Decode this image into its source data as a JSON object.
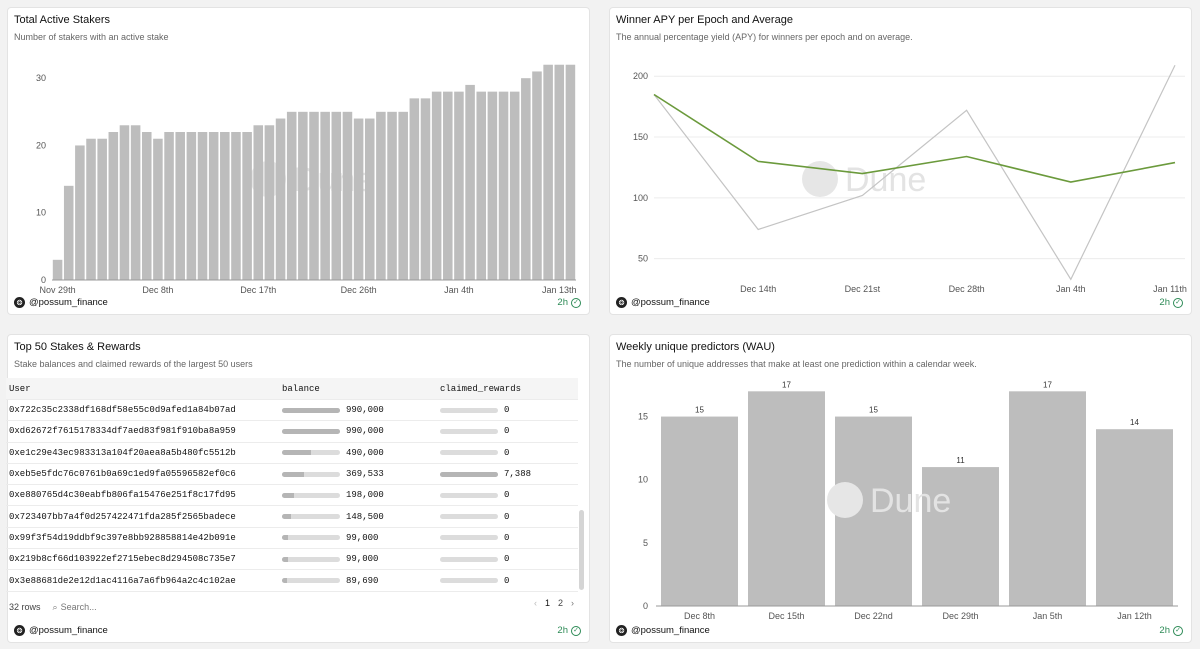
{
  "panels": {
    "stakers": {
      "title": "Total Active Stakers",
      "subtitle": "Number of stakers with an active stake",
      "author": "@possum_finance",
      "freshness": "2h"
    },
    "apy": {
      "title": "Winner APY per Epoch and Average",
      "subtitle": "The annual percentage yield (APY) for winners per epoch and on average.",
      "author": "@possum_finance",
      "freshness": "2h"
    },
    "top50": {
      "title": "Top 50 Stakes & Rewards",
      "subtitle": "Stake balances and claimed rewards of the largest 50 users",
      "author": "@possum_finance",
      "freshness": "2h",
      "columns": [
        "User",
        "balance",
        "claimed_rewards"
      ],
      "rows": [
        {
          "user": "0x722c35c2338df168df58e55c0d9afed1a84b07ad",
          "balance": "990,000",
          "bal_frac": 1.0,
          "rewards": "0",
          "rew_frac": 0
        },
        {
          "user": "0xd62672f7615178334df7aed83f981f910ba8a959",
          "balance": "990,000",
          "bal_frac": 1.0,
          "rewards": "0",
          "rew_frac": 0
        },
        {
          "user": "0xe1c29e43ec983313a104f20aea8a5b480fc5512b",
          "balance": "490,000",
          "bal_frac": 0.495,
          "rewards": "0",
          "rew_frac": 0
        },
        {
          "user": "0xeb5e5fdc76c0761b0a69c1ed9fa05596582ef0c6",
          "balance": "369,533",
          "bal_frac": 0.373,
          "rewards": "7,388",
          "rew_frac": 1.0
        },
        {
          "user": "0xe880765d4c30eabfb806fa15476e251f8c17fd95",
          "balance": "198,000",
          "bal_frac": 0.2,
          "rewards": "0",
          "rew_frac": 0
        },
        {
          "user": "0x723407bb7a4f0d257422471fda285f2565badece",
          "balance": "148,500",
          "bal_frac": 0.15,
          "rewards": "0",
          "rew_frac": 0
        },
        {
          "user": "0x99f3f54d19ddbf9c397e8bb928858814e42b091e",
          "balance": "99,000",
          "bal_frac": 0.1,
          "rewards": "0",
          "rew_frac": 0
        },
        {
          "user": "0x219b8cf66d103922ef2715ebec8d294508c735e7",
          "balance": "99,000",
          "bal_frac": 0.1,
          "rewards": "0",
          "rew_frac": 0
        },
        {
          "user": "0x3e88681de2e12d1ac4116a7a6fb964a2c4c102ae",
          "balance": "89,690",
          "bal_frac": 0.09,
          "rewards": "0",
          "rew_frac": 0
        }
      ],
      "row_count": "32 rows",
      "search_placeholder": "Search...",
      "pages": [
        "1",
        "2"
      ]
    },
    "wau": {
      "title": "Weekly unique predictors (WAU)",
      "subtitle": "The number of unique addresses that make at least one prediction within a calendar week.",
      "author": "@possum_finance",
      "freshness": "2h"
    }
  },
  "watermark": "Dune",
  "colors": {
    "bar": "#bdbdbd",
    "apy_line": "#6b9a3c",
    "winner_line": "#c4c4c4",
    "fresh": "#2e8b57"
  },
  "chart_data": [
    {
      "id": "stakers",
      "type": "bar",
      "x_ticks": [
        "Nov 29th",
        "Dec 8th",
        "Dec 17th",
        "Dec 26th",
        "Jan 4th",
        "Jan 13th"
      ],
      "values": [
        3,
        14,
        20,
        21,
        21,
        22,
        23,
        23,
        22,
        21,
        22,
        22,
        22,
        22,
        22,
        22,
        22,
        22,
        23,
        23,
        24,
        25,
        25,
        25,
        25,
        25,
        25,
        24,
        24,
        25,
        25,
        25,
        27,
        27,
        28,
        28,
        28,
        29,
        28,
        28,
        28,
        28,
        30,
        31,
        32,
        32,
        32
      ],
      "y_ticks": [
        0,
        10,
        20,
        30
      ],
      "ylim": [
        0,
        33
      ]
    },
    {
      "id": "apy",
      "type": "line",
      "x": [
        0,
        1,
        2,
        3,
        4,
        5
      ],
      "x_ticks": [
        "Dec 14th",
        "Dec 21st",
        "Dec 28th",
        "Jan 4th",
        "Jan 11th"
      ],
      "y_ticks": [
        50,
        100,
        150,
        200
      ],
      "ylim": [
        30,
        215
      ],
      "series": [
        {
          "values": [
            185,
            74,
            102,
            172,
            33,
            209
          ],
          "style": "winner"
        },
        {
          "values": [
            185,
            130,
            120,
            134,
            113,
            129
          ],
          "style": "average"
        }
      ]
    },
    {
      "id": "wau",
      "type": "bar",
      "categories": [
        "Dec 8th",
        "Dec 15th",
        "Dec 22nd",
        "Dec 29th",
        "Jan 5th",
        "Jan 12th"
      ],
      "values": [
        15,
        17,
        15,
        11,
        17,
        14
      ],
      "y_ticks": [
        0,
        5,
        10,
        15
      ],
      "ylim": [
        0,
        17.5
      ]
    }
  ]
}
